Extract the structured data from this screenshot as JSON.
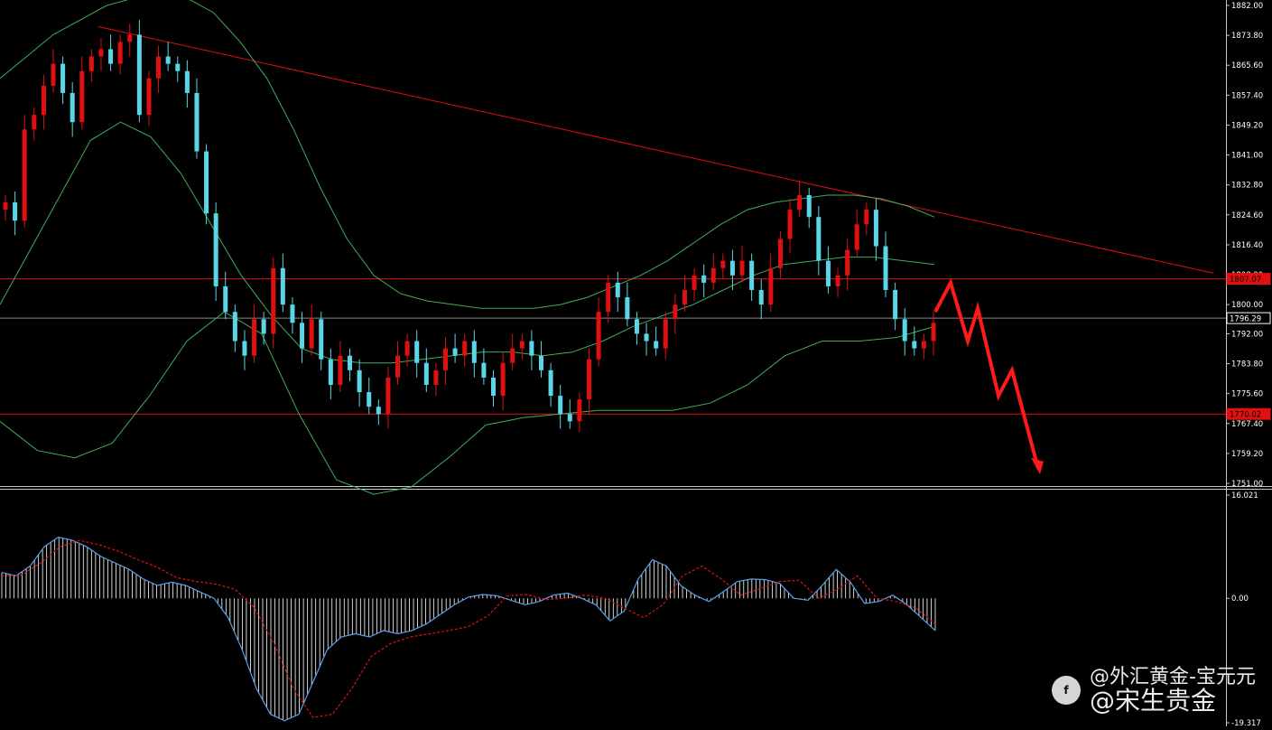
{
  "chart_data": [
    {
      "type": "candlestick",
      "title": "",
      "ylim": [
        1751.0,
        1882.0
      ],
      "y_ticks": [
        "1882.00",
        "1873.80",
        "1865.60",
        "1857.40",
        "1849.20",
        "1841.00",
        "1832.80",
        "1824.60",
        "1816.40",
        "1808.20",
        "1800.00",
        "1792.00",
        "1783.80",
        "1775.60",
        "1767.40",
        "1759.20",
        "1751.00"
      ],
      "price_labels": [
        {
          "value": 1807.07,
          "text": "1807.07",
          "color": "#e01010"
        },
        {
          "value": 1796.29,
          "text": "1796.29",
          "color": "#ffffff"
        },
        {
          "value": 1770.02,
          "text": "1770.02",
          "color": "#e01010"
        }
      ],
      "horizontal_lines": [
        {
          "value": 1807.07,
          "color": "#e01010"
        },
        {
          "value": 1796.29,
          "color": "#888888"
        },
        {
          "value": 1770.02,
          "color": "#e01010"
        }
      ],
      "trendline": {
        "from": [
          0.08,
          1876.2
        ],
        "to": [
          0.99,
          1808.6
        ],
        "color": "#e01010"
      },
      "series": [
        {
          "name": "close",
          "values": [
            1828,
            1823,
            1848,
            1852,
            1860,
            1866,
            1858,
            1850,
            1864,
            1868,
            1870,
            1866,
            1872,
            1874,
            1852,
            1862,
            1868,
            1866,
            1864,
            1858,
            1842,
            1825,
            1805,
            1798,
            1790,
            1786,
            1796,
            1792,
            1810,
            1800,
            1795,
            1788,
            1796,
            1785,
            1778,
            1786,
            1782,
            1776,
            1772,
            1770,
            1780,
            1786,
            1790,
            1784,
            1778,
            1782,
            1788,
            1786,
            1790,
            1784,
            1780,
            1775,
            1784,
            1788,
            1790,
            1786,
            1782,
            1775,
            1770,
            1768,
            1774,
            1785,
            1798,
            1806,
            1802,
            1796,
            1792,
            1790,
            1788,
            1796,
            1800,
            1804,
            1808,
            1806,
            1810,
            1812,
            1808,
            1812,
            1804,
            1800,
            1810,
            1818,
            1826,
            1830,
            1824,
            1812,
            1805,
            1808,
            1815,
            1822,
            1826,
            1816,
            1804,
            1796,
            1790,
            1788,
            1790,
            1795
          ]
        },
        {
          "name": "bollinger_upper",
          "values": [
            1862,
            1868,
            1874,
            1878,
            1882,
            1884,
            1885,
            1884,
            1880,
            1872,
            1862,
            1848,
            1832,
            1818,
            1808,
            1803,
            1801,
            1800,
            1799,
            1799,
            1799,
            1800,
            1802,
            1805,
            1808,
            1812,
            1817,
            1822,
            1826,
            1828,
            1829,
            1830,
            1830,
            1829,
            1827,
            1824
          ]
        },
        {
          "name": "bollinger_middle",
          "values": [
            1800,
            1815,
            1830,
            1845,
            1850,
            1846,
            1836,
            1822,
            1808,
            1797,
            1788,
            1785,
            1784,
            1784,
            1785,
            1786,
            1787,
            1787,
            1786,
            1787,
            1790,
            1794,
            1797,
            1800,
            1804,
            1808,
            1811,
            1812,
            1813,
            1813,
            1812,
            1811
          ]
        },
        {
          "name": "bollinger_lower",
          "values": [
            1768,
            1760,
            1758,
            1762,
            1775,
            1790,
            1798,
            1792,
            1770,
            1752,
            1748,
            1750,
            1758,
            1767,
            1769,
            1770,
            1771,
            1771,
            1771,
            1773,
            1778,
            1786,
            1790,
            1790,
            1791,
            1794
          ]
        },
        {
          "name": "projection",
          "values": [
            1798,
            1806,
            1790,
            1799,
            1775,
            1782,
            1755
          ]
        }
      ],
      "colors": {
        "bull": "#e01010",
        "bear": "#5ad6e6",
        "band": "#3fae5a"
      }
    },
    {
      "type": "bar",
      "title": "",
      "ylim": [
        -19.317,
        16.021
      ],
      "y_ticks": [
        "16.021",
        "0.00",
        "-19.317"
      ],
      "series": [
        {
          "name": "macd",
          "values": [
            4,
            3.5,
            5,
            8,
            9.5,
            9,
            8,
            6.5,
            5.5,
            4.5,
            3,
            2,
            2.5,
            2,
            1,
            0,
            -3,
            -8,
            -14,
            -18,
            -19,
            -18,
            -13,
            -8,
            -6,
            -5.5,
            -6,
            -5,
            -5.5,
            -5,
            -4,
            -2.5,
            -1,
            0.2,
            0.6,
            0.4,
            -0.3,
            -1,
            -0.5,
            0.5,
            0.8,
            0,
            -1,
            -3.5,
            -2,
            3,
            6,
            5,
            2,
            0.5,
            -0.5,
            1,
            2.6,
            3,
            2.9,
            2.3,
            0,
            -0.3,
            2,
            4.5,
            2.5,
            -0.8,
            -0.5,
            0.5,
            -1,
            -3,
            -5
          ]
        },
        {
          "name": "signal",
          "values": [
            3.5,
            3.6,
            5.5,
            8,
            9,
            8.3,
            7.3,
            6,
            4.8,
            3.2,
            2.6,
            2.2,
            1.4,
            -1.5,
            -7,
            -14,
            -18.5,
            -18,
            -14,
            -9,
            -7,
            -6,
            -5.5,
            -5,
            -4.4,
            -2.7,
            0.4,
            0.6,
            -0.2,
            0,
            0.5,
            0,
            -1.5,
            -3,
            -1,
            3.5,
            5,
            3,
            0.5,
            1.5,
            2.6,
            2.8,
            0,
            1.5,
            3.5,
            0,
            -0.5,
            -1.5,
            -4
          ]
        }
      ],
      "colors": {
        "hist": "#ffffff",
        "macd_line": "#5aa0e6",
        "signal_line": "#e01010"
      }
    }
  ],
  "watermark": {
    "line1": "@外汇黄金-宝元元",
    "line2": "@宋生贵金",
    "icon": "weibo-logo",
    "logo_text": "f"
  }
}
